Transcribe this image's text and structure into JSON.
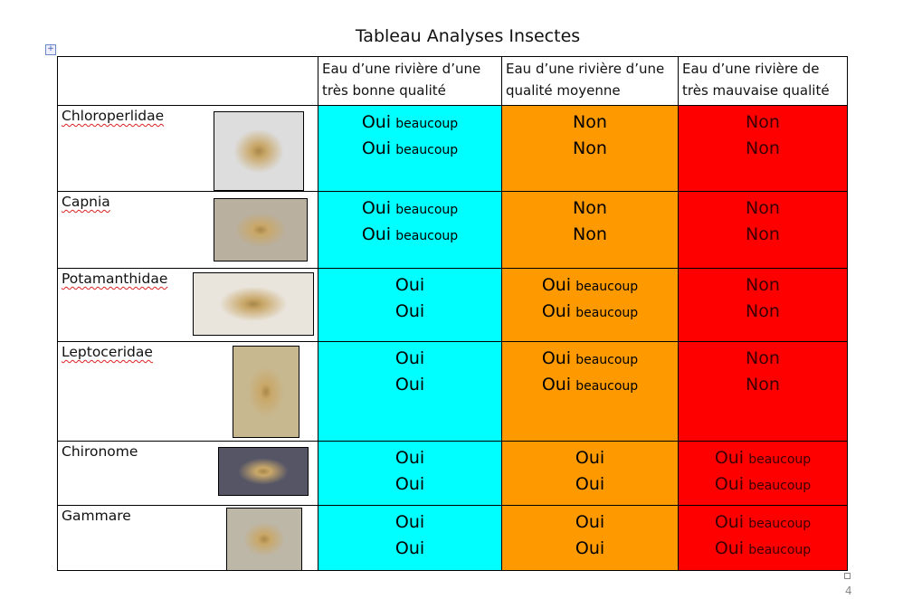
{
  "title": "Tableau Analyses Insectes",
  "page_number": "4",
  "colors": {
    "good": "#00FFFF",
    "medium": "#FF9900",
    "bad": "#FF0000"
  },
  "headers": [
    "",
    "Eau d’une rivière d’une très bonne qualité",
    "Eau d’une rivière d’une qualité moyenne",
    "Eau d’une rivière de très mauvaise qualité"
  ],
  "rows": [
    {
      "name": "Chloroperlidae",
      "spell": true,
      "photo": "chloroperlidae-photo",
      "cells": [
        [
          "Oui",
          "beaucoup"
        ],
        [
          "Non",
          ""
        ],
        [
          "Non",
          ""
        ]
      ]
    },
    {
      "name": "Capnia",
      "spell": true,
      "photo": "capnia-photo",
      "cells": [
        [
          "Oui",
          "beaucoup"
        ],
        [
          "Non",
          ""
        ],
        [
          "Non",
          ""
        ]
      ]
    },
    {
      "name": "Potamanthidae",
      "spell": true,
      "photo": "potamanthidae-photo",
      "cells": [
        [
          "Oui",
          ""
        ],
        [
          "Oui",
          "beaucoup"
        ],
        [
          "Non",
          ""
        ]
      ]
    },
    {
      "name": "Leptoceridae",
      "spell": true,
      "photo": "leptoceridae-photo",
      "cells": [
        [
          "Oui",
          ""
        ],
        [
          "Oui",
          "beaucoup"
        ],
        [
          "Non",
          ""
        ]
      ]
    },
    {
      "name": "Chironome",
      "spell": false,
      "photo": "chironome-photo",
      "cells": [
        [
          "Oui",
          ""
        ],
        [
          "Oui",
          ""
        ],
        [
          "Oui",
          "beaucoup"
        ]
      ]
    },
    {
      "name": "Gammare",
      "spell": false,
      "photo": "gammare-photo",
      "cells": [
        [
          "Oui",
          ""
        ],
        [
          "Oui",
          ""
        ],
        [
          "Oui",
          "beaucoup"
        ]
      ]
    }
  ]
}
